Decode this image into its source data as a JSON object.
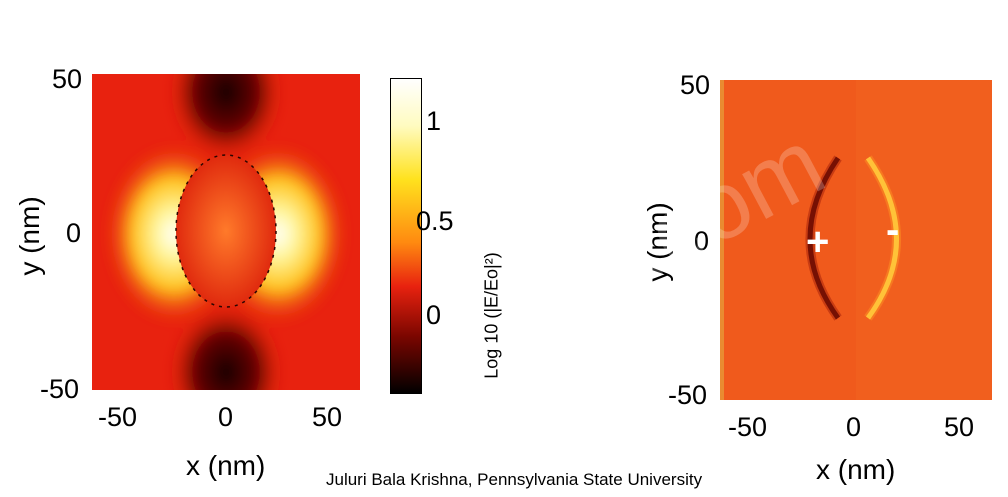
{
  "left_plot": {
    "y_label": "y (nm)",
    "x_label": "x (nm)",
    "y_ticks": [
      "50",
      "0",
      "-50"
    ],
    "x_ticks": [
      "-50",
      "0",
      "50"
    ]
  },
  "colorbar": {
    "label": "Log 10 (|E/Eo|²)",
    "ticks": [
      "1",
      "0.5",
      "0"
    ]
  },
  "right_plot": {
    "y_label": "y (nm)",
    "x_label": "x (nm)",
    "y_ticks": [
      "50",
      "0",
      "-50"
    ],
    "x_ticks": [
      "-50",
      "0",
      "50"
    ],
    "plus_sign": "+",
    "minus_sign": "-"
  },
  "caption": "Juluri Bala Krishna, Pennsylvania State University",
  "watermark": ".com",
  "colors": {
    "background_red": "#e8220f",
    "hot_yellow": "#ffe93a",
    "dark": "#1a0000",
    "right_background": "#f05a1c"
  }
}
